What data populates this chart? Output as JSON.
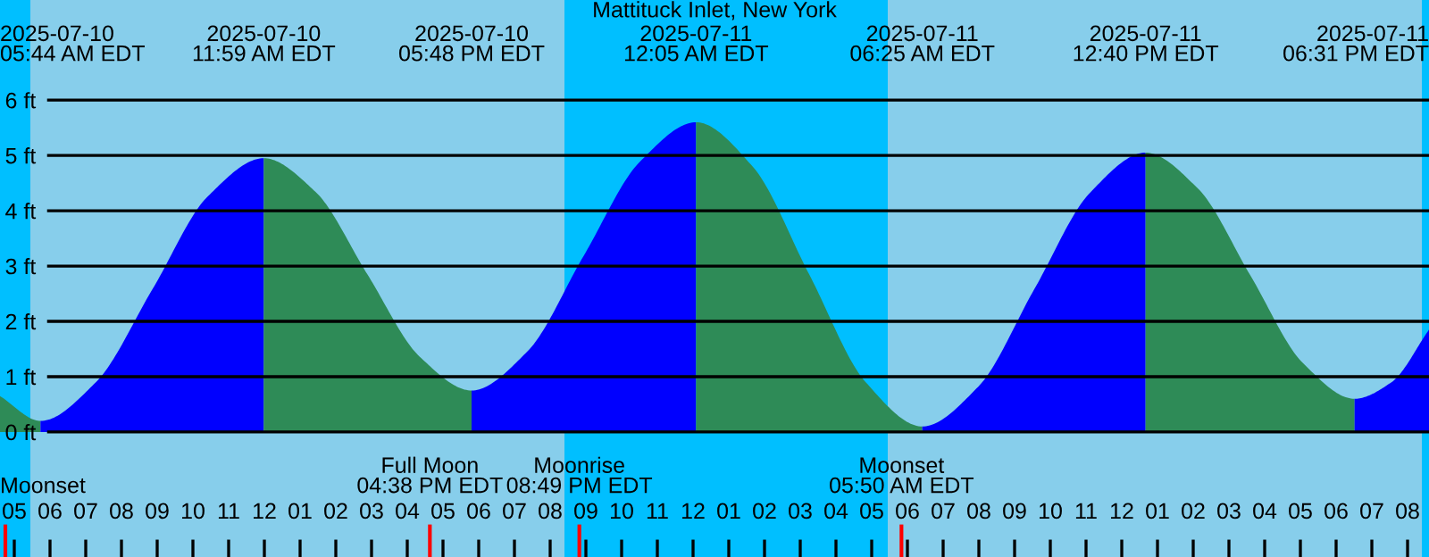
{
  "chart_data": {
    "type": "area",
    "title": "Mattituck Inlet, New York",
    "series": [
      {
        "color": "#2e8b57",
        "x": [
          "2025-07-10T04:36",
          "2025-07-10T05:44"
        ],
        "values": [
          0.65,
          0.2
        ]
      },
      {
        "color": "#0000ff",
        "x": [
          "2025-07-10T05:44",
          "2025-07-10T07:17",
          "2025-07-10T08:52",
          "2025-07-10T10:25",
          "2025-07-10T11:59"
        ],
        "values": [
          0.2,
          0.9,
          2.58,
          4.26,
          4.95
        ]
      },
      {
        "color": "#2e8b57",
        "x": [
          "2025-07-10T11:59",
          "2025-07-10T13:26",
          "2025-07-10T14:53",
          "2025-07-10T16:21",
          "2025-07-10T17:48"
        ],
        "values": [
          4.95,
          4.34,
          2.85,
          1.36,
          0.75
        ]
      },
      {
        "color": "#0000ff",
        "x": [
          "2025-07-10T17:48",
          "2025-07-10T19:22",
          "2025-07-10T20:56",
          "2025-07-10T22:31",
          "2025-07-11T00:05"
        ],
        "values": [
          0.75,
          1.46,
          3.18,
          4.89,
          5.6
        ]
      },
      {
        "color": "#2e8b57",
        "x": [
          "2025-07-11T00:05",
          "2025-07-11T01:40",
          "2025-07-11T03:15",
          "2025-07-11T04:50",
          "2025-07-11T06:25"
        ],
        "values": [
          5.6,
          4.8,
          2.85,
          0.9,
          0.1
        ]
      },
      {
        "color": "#0000ff",
        "x": [
          "2025-07-11T06:25",
          "2025-07-11T07:59",
          "2025-07-11T09:33",
          "2025-07-11T11:07",
          "2025-07-11T12:40"
        ],
        "values": [
          0.1,
          0.82,
          2.58,
          4.33,
          5.05
        ]
      },
      {
        "color": "#2e8b57",
        "x": [
          "2025-07-11T12:40",
          "2025-07-11T14:08",
          "2025-07-11T15:36",
          "2025-07-11T17:04",
          "2025-07-11T18:31"
        ],
        "values": [
          5.05,
          4.4,
          2.83,
          1.25,
          0.6
        ]
      },
      {
        "color": "#0000ff",
        "x": [
          "2025-07-11T18:31",
          "2025-07-11T19:33",
          "2025-07-11T20:36"
        ],
        "values": [
          0.6,
          0.9,
          1.85
        ]
      }
    ],
    "annotations": [
      "2025-07-10\n05:44 AM EDT",
      "2025-07-10\n11:59 AM EDT",
      "2025-07-10\n05:48 PM EDT",
      "2025-07-11\n12:05 AM EDT",
      "2025-07-11\n06:25 AM EDT",
      "2025-07-11\n12:40 PM EDT",
      "2025-07-11\n06:31 PM EDT"
    ],
    "ref_lines": [
      {
        "axis": "x",
        "value": "2025-07-10T04:45",
        "label": "Moonset",
        "color": "#ff0000"
      },
      {
        "axis": "x",
        "value": "2025-07-10T16:38",
        "label": "Full Moon\n04:38 PM EDT",
        "color": "#ff0000"
      },
      {
        "axis": "x",
        "value": "2025-07-10T20:49",
        "label": "Moonrise\n08:49 PM EDT",
        "color": "#ff0000"
      },
      {
        "axis": "x",
        "value": "2025-07-11T05:50",
        "label": "Moonset\n05:50 AM EDT",
        "color": "#ff0000"
      }
    ],
    "bands": [
      {
        "axis": "x",
        "from": "2025-07-10T04:36",
        "to": "2025-07-10T05:27",
        "color": "#00bfff"
      },
      {
        "axis": "x",
        "from": "2025-07-10T20:24",
        "to": "2025-07-11T05:27",
        "color": "#00bfff"
      },
      {
        "axis": "x",
        "from": "2025-07-11T20:24",
        "to": "2025-07-11T20:36",
        "color": "#00bfff"
      }
    ],
    "xlim": [
      "2025-07-10T04:36",
      "2025-07-11T20:36"
    ],
    "xticks": [
      {
        "value": "2025-07-10T05:00",
        "label": "05"
      },
      {
        "value": "2025-07-10T06:00",
        "label": "06"
      },
      {
        "value": "2025-07-10T07:00",
        "label": "07"
      },
      {
        "value": "2025-07-10T08:00",
        "label": "08"
      },
      {
        "value": "2025-07-10T09:00",
        "label": "09"
      },
      {
        "value": "2025-07-10T10:00",
        "label": "10"
      },
      {
        "value": "2025-07-10T11:00",
        "label": "11"
      },
      {
        "value": "2025-07-10T12:00",
        "label": "12"
      },
      {
        "value": "2025-07-10T13:00",
        "label": "01"
      },
      {
        "value": "2025-07-10T14:00",
        "label": "02"
      },
      {
        "value": "2025-07-10T15:00",
        "label": "03"
      },
      {
        "value": "2025-07-10T16:00",
        "label": "04"
      },
      {
        "value": "2025-07-10T17:00",
        "label": "05"
      },
      {
        "value": "2025-07-10T18:00",
        "label": "06"
      },
      {
        "value": "2025-07-10T19:00",
        "label": "07"
      },
      {
        "value": "2025-07-10T20:00",
        "label": "08"
      },
      {
        "value": "2025-07-10T21:00",
        "label": "09"
      },
      {
        "value": "2025-07-10T22:00",
        "label": "10"
      },
      {
        "value": "2025-07-10T23:00",
        "label": "11"
      },
      {
        "value": "2025-07-11T00:00",
        "label": "12"
      },
      {
        "value": "2025-07-11T01:00",
        "label": "01"
      },
      {
        "value": "2025-07-11T02:00",
        "label": "02"
      },
      {
        "value": "2025-07-11T03:00",
        "label": "03"
      },
      {
        "value": "2025-07-11T04:00",
        "label": "04"
      },
      {
        "value": "2025-07-11T05:00",
        "label": "05"
      },
      {
        "value": "2025-07-11T06:00",
        "label": "06"
      },
      {
        "value": "2025-07-11T07:00",
        "label": "07"
      },
      {
        "value": "2025-07-11T08:00",
        "label": "08"
      },
      {
        "value": "2025-07-11T09:00",
        "label": "09"
      },
      {
        "value": "2025-07-11T10:00",
        "label": "10"
      },
      {
        "value": "2025-07-11T11:00",
        "label": "11"
      },
      {
        "value": "2025-07-11T12:00",
        "label": "12"
      },
      {
        "value": "2025-07-11T13:00",
        "label": "01"
      },
      {
        "value": "2025-07-11T14:00",
        "label": "02"
      },
      {
        "value": "2025-07-11T15:00",
        "label": "03"
      },
      {
        "value": "2025-07-11T16:00",
        "label": "04"
      },
      {
        "value": "2025-07-11T17:00",
        "label": "05"
      },
      {
        "value": "2025-07-11T18:00",
        "label": "06"
      },
      {
        "value": "2025-07-11T19:00",
        "label": "07"
      },
      {
        "value": "2025-07-11T20:00",
        "label": "08"
      }
    ],
    "ylim": [
      -2.26,
      7.81
    ],
    "yticks": [
      {
        "value": 0,
        "label": "0 ft"
      },
      {
        "value": 1,
        "label": "1 ft"
      },
      {
        "value": 2,
        "label": "2 ft"
      },
      {
        "value": 3,
        "label": "3 ft"
      },
      {
        "value": 4,
        "label": "4 ft"
      },
      {
        "value": 5,
        "label": "5 ft"
      },
      {
        "value": 6,
        "label": "6 ft"
      }
    ],
    "grid": "y",
    "legend": false
  }
}
